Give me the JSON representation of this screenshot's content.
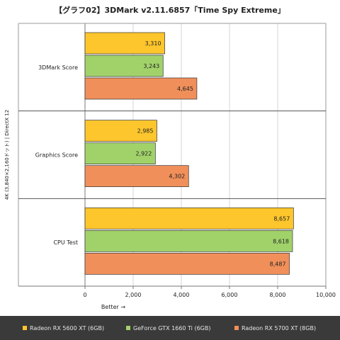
{
  "chart_data": {
    "type": "bar",
    "orientation": "horizontal",
    "title": "【グラフ02】3DMark v2.11.6857「Time Spy Extreme」",
    "side_label": "4K (3,840×2,160ドット) | DirectX 12",
    "xlabel": "Better →",
    "categories": [
      "3DMark Score",
      "Graphics Score",
      "CPU Test"
    ],
    "series": [
      {
        "name": "Radeon RX 5600 XT (6GB)",
        "color": "#fdc62c",
        "values": [
          3310,
          2985,
          8657
        ],
        "labels": [
          "3,310",
          "2,985",
          "8,657"
        ]
      },
      {
        "name": "GeForce GTX 1660 Ti (6GB)",
        "color": "#a1d26a",
        "values": [
          3243,
          2922,
          8618
        ],
        "labels": [
          "3,243",
          "2,922",
          "8,618"
        ]
      },
      {
        "name": "Radeon RX 5700 XT (8GB)",
        "color": "#f08f5a",
        "values": [
          4645,
          4302,
          8487
        ],
        "labels": [
          "4,645",
          "4,302",
          "8,487"
        ]
      }
    ],
    "xlim": [
      0,
      10000
    ],
    "xticks": [
      0,
      2000,
      4000,
      6000,
      8000,
      10000
    ],
    "xtick_labels": [
      "0",
      "2,000",
      "4,000",
      "6,000",
      "8,000",
      "10,000"
    ],
    "grid": true,
    "legend_position": "bottom"
  }
}
